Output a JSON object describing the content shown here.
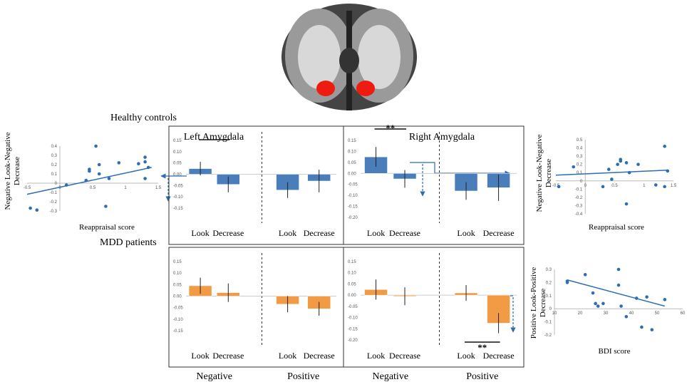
{
  "labels": {
    "healthy": "Healthy controls",
    "mdd": "MDD patients"
  },
  "chart_data": [
    {
      "type": "bar",
      "title": "Left Amygdala",
      "color": "#4a7ebb",
      "categories": [
        "Look",
        "Decrease",
        "Look",
        "Decrease"
      ],
      "values": [
        0.025,
        -0.045,
        -0.07,
        -0.03
      ],
      "errors": [
        0.03,
        0.035,
        0.035,
        0.05
      ],
      "ylim": [
        -0.15,
        0.15
      ],
      "yticks": [
        0.15,
        {
          "value": 0.1,
          "label": "0.10"
        },
        0.05,
        {
          "value": 0,
          "label": "0.00"
        },
        -0.05,
        {
          "value": -0.1,
          "label": "-0.10"
        },
        -0.15
      ]
    },
    {
      "type": "bar",
      "title": "Right Amygdala",
      "color": "#4a7ebb",
      "categories": [
        "Look",
        "Decrease",
        "Look",
        "Decrease"
      ],
      "values": [
        0.075,
        -0.025,
        -0.08,
        -0.065
      ],
      "errors": [
        0.045,
        0.04,
        0.04,
        0.06
      ],
      "ylim": [
        -0.2,
        0.15
      ],
      "yticks": [
        0.15,
        {
          "value": 0.1,
          "label": "0.10"
        },
        0.05,
        {
          "value": 0,
          "label": "0.00"
        },
        -0.05,
        {
          "value": -0.1,
          "label": "-0.10"
        },
        -0.15,
        {
          "value": -0.2,
          "label": "-0.20"
        }
      ],
      "significance": "**"
    },
    {
      "type": "bar",
      "color": "#f39a45",
      "categories": [
        "Look",
        "Decrease",
        "Look",
        "Decrease"
      ],
      "values": [
        0.045,
        0.015,
        -0.035,
        -0.055
      ],
      "errors": [
        0.035,
        0.04,
        0.035,
        0.03
      ],
      "ylim": [
        -0.15,
        0.15
      ],
      "yticks": [
        0.15,
        {
          "value": 0.1,
          "label": "0.10"
        },
        0.05,
        {
          "value": 0,
          "label": "0.00"
        },
        -0.05,
        {
          "value": -0.1,
          "label": "-0.10"
        },
        -0.15
      ],
      "groups": [
        "Negative",
        "Positive"
      ]
    },
    {
      "type": "bar",
      "color": "#f39a45",
      "categories": [
        "Look",
        "Decrease",
        "Look",
        "Decrease"
      ],
      "values": [
        0.025,
        -0.005,
        0.01,
        -0.125
      ],
      "errors": [
        0.045,
        0.04,
        0.035,
        0.045
      ],
      "ylim": [
        -0.2,
        0.15
      ],
      "yticks": [
        0.15,
        {
          "value": 0.1,
          "label": "0.10"
        },
        0.05,
        {
          "value": 0,
          "label": "0.00"
        },
        -0.05,
        {
          "value": -0.1,
          "label": "-0.10"
        },
        -0.15,
        {
          "value": -0.2,
          "label": "-0.20"
        }
      ],
      "significance": "**",
      "groups": [
        "Negative",
        "Positive"
      ]
    },
    {
      "type": "scatter",
      "color": "#2e6db4",
      "x_label": "Reappraisal score",
      "y_label": [
        "Negative Look-Negative",
        "Decrease"
      ],
      "x": [
        -0.45,
        -0.35,
        0.1,
        0.4,
        0.45,
        0.45,
        0.55,
        0.6,
        0.6,
        0.7,
        0.75,
        0.9,
        1.2,
        1.3,
        1.3,
        1.35,
        1.3
      ],
      "y": [
        -0.27,
        -0.29,
        -0.02,
        0.03,
        0.15,
        0.13,
        0.4,
        0.2,
        0.1,
        -0.25,
        0.05,
        0.22,
        0.21,
        0.28,
        0.23,
        0.17,
        0.05
      ],
      "fit": {
        "x": [
          -0.5,
          1.4
        ],
        "y": [
          -0.12,
          0.17
        ]
      },
      "xlim": [
        -0.5,
        1.5
      ],
      "ylim": [
        -0.3,
        0.4
      ],
      "xticks": [
        -0.5,
        0,
        0.5,
        1,
        1.5
      ],
      "yticks": [
        0.4,
        0.3,
        0.2,
        0.1,
        0,
        -0.1,
        -0.2,
        -0.3
      ]
    },
    {
      "type": "scatter",
      "color": "#2e6db4",
      "x_label": "Reappraisal score",
      "y_label": [
        "Negative Look-Negative",
        "Decrease"
      ],
      "x": [
        -0.45,
        -0.2,
        0.3,
        0.4,
        0.45,
        0.55,
        0.6,
        0.6,
        0.7,
        0.7,
        0.75,
        0.9,
        1.2,
        1.35,
        1.35,
        1.4
      ],
      "y": [
        -0.07,
        0.17,
        -0.07,
        0.14,
        0.02,
        0.2,
        0.26,
        0.24,
        0.22,
        -0.28,
        0.1,
        0.2,
        -0.05,
        -0.07,
        0.42,
        0.12
      ],
      "fit": {
        "x": [
          -0.5,
          1.4
        ],
        "y": [
          0.07,
          0.13
        ]
      },
      "xlim": [
        -0.5,
        1.5
      ],
      "ylim": [
        -0.4,
        0.5
      ],
      "xticks": [
        -0.5,
        0,
        0.5,
        1,
        1.5
      ],
      "yticks": [
        0.5,
        0.4,
        0.3,
        0.2,
        0.1,
        0,
        -0.1,
        -0.2,
        -0.3,
        -0.4
      ]
    },
    {
      "type": "scatter",
      "color": "#2e6db4",
      "x_label": "BDI score",
      "y_label": [
        "Positive Look-Positive",
        "Decrease"
      ],
      "x": [
        15,
        15,
        22,
        25,
        26,
        27,
        29,
        35,
        35,
        36,
        38,
        42,
        44,
        46,
        48,
        53
      ],
      "y": [
        0.21,
        0.2,
        0.26,
        0.12,
        0.04,
        0.02,
        0.04,
        0.3,
        0.18,
        0.02,
        -0.06,
        0.08,
        -0.14,
        0.09,
        -0.16,
        0.07
      ],
      "fit": {
        "x": [
          15,
          53
        ],
        "y": [
          0.22,
          0.02
        ]
      },
      "xlim": [
        10,
        60
      ],
      "ylim": [
        -0.2,
        0.3
      ],
      "xticks": [
        10,
        20,
        30,
        40,
        50,
        60
      ],
      "yticks": [
        0.3,
        0.2,
        0.1,
        0,
        -0.1,
        -0.2
      ]
    }
  ]
}
